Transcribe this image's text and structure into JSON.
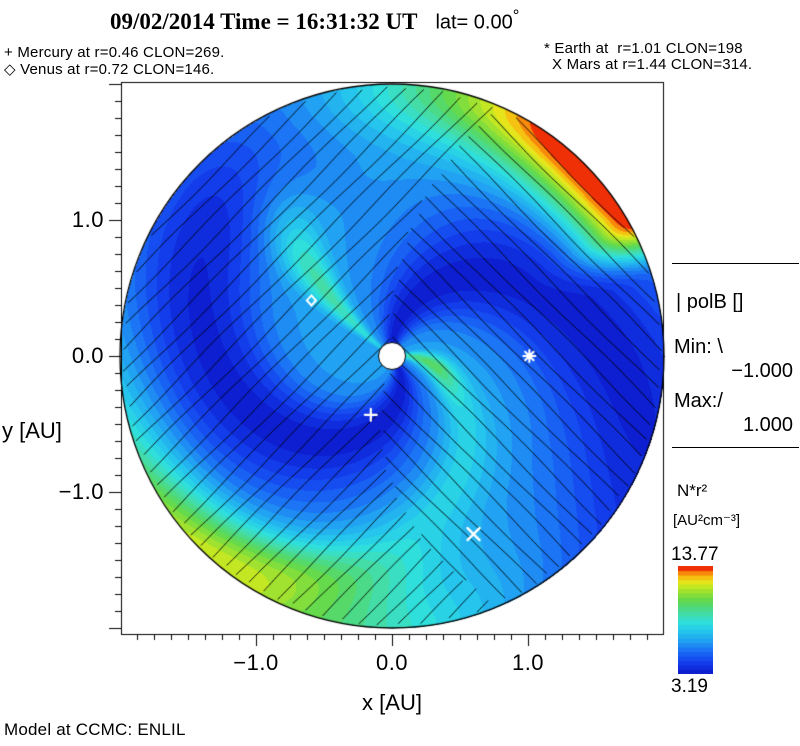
{
  "title": {
    "main": "09/02/2014 Time = 16:31:32 UT",
    "lat": "lat= 0.00",
    "degree": "°"
  },
  "annotations": {
    "mercury": "+ Mercury at r=0.46 CLON=269.",
    "venus": "◇ Venus at r=0.72 CLON=146.",
    "earth": "* Earth at  r=1.01 CLON=198",
    "mars": "X Mars at r=1.44 CLON=314."
  },
  "axes": {
    "x_label": "x [AU]",
    "y_label": "y [AU]",
    "x_tick_labels": [
      "−1.0",
      "0.0",
      "1.0"
    ],
    "y_tick_labels": [
      "1.0",
      "0.0",
      "−1.0"
    ]
  },
  "polb_legend": {
    "title": "| polB []",
    "min_label": "Min: \\",
    "min_value": "−1.000",
    "max_label": "Max:/",
    "max_value": "1.000"
  },
  "colorbar": {
    "quantity": "N*r²",
    "units": "[AU²cm⁻³]",
    "max": "13.77",
    "min": "3.19"
  },
  "footer": "Model at CCMC: ENLIL",
  "chart_data": {
    "type": "heatmap",
    "projection": "polar-disk-ecliptic-cut",
    "title": "09/02/2014 Time = 16:31:32 UT lat= 0.00°",
    "xlabel": "x [AU]",
    "ylabel": "y [AU]",
    "xlim": [
      -2.0,
      2.0
    ],
    "ylim": [
      -2.0,
      2.0
    ],
    "x_ticks": [
      -1.0,
      0.0,
      1.0
    ],
    "y_ticks": [
      -1.0,
      0.0,
      1.0
    ],
    "disk_radius_au": 2.0,
    "quantity": "N*r² [AU²cm⁻³]",
    "value_min": 3.19,
    "value_max": 13.77,
    "polB_min": -1.0,
    "polB_max": 1.0,
    "model": "ENLIL at CCMC",
    "planets": [
      {
        "name": "Mercury",
        "marker": "plus",
        "r_au": 0.46,
        "clon_deg": 269,
        "plot_angle_deg": 250.2
      },
      {
        "name": "Venus",
        "marker": "diamond",
        "r_au": 0.72,
        "clon_deg": 146,
        "plot_angle_deg": 145.4
      },
      {
        "name": "Earth",
        "marker": "asterisk",
        "r_au": 1.01,
        "clon_deg": 198,
        "plot_angle_deg": 0.0
      },
      {
        "name": "Mars",
        "marker": "x",
        "r_au": 1.44,
        "clon_deg": 314,
        "plot_angle_deg": 294.6
      }
    ],
    "colormap_stops": [
      [
        0.0,
        "#0d1fd0"
      ],
      [
        0.1,
        "#1440ee"
      ],
      [
        0.2,
        "#1a6cf5"
      ],
      [
        0.3,
        "#21a0f2"
      ],
      [
        0.4,
        "#25c8ec"
      ],
      [
        0.48,
        "#2fe0dc"
      ],
      [
        0.56,
        "#43ddac"
      ],
      [
        0.63,
        "#4fd877"
      ],
      [
        0.7,
        "#66da49"
      ],
      [
        0.77,
        "#96e132"
      ],
      [
        0.83,
        "#c6e822"
      ],
      [
        0.88,
        "#eee41a"
      ],
      [
        0.92,
        "#f7bb10"
      ],
      [
        0.96,
        "#f8850a"
      ],
      [
        1.0,
        "#ef3007"
      ]
    ],
    "n_color_bands": 24,
    "hatch": {
      "positive": "/",
      "negative": "\\",
      "color": "#000000"
    },
    "sun_color": "#ffffff",
    "marker_color": "#ffffff"
  }
}
